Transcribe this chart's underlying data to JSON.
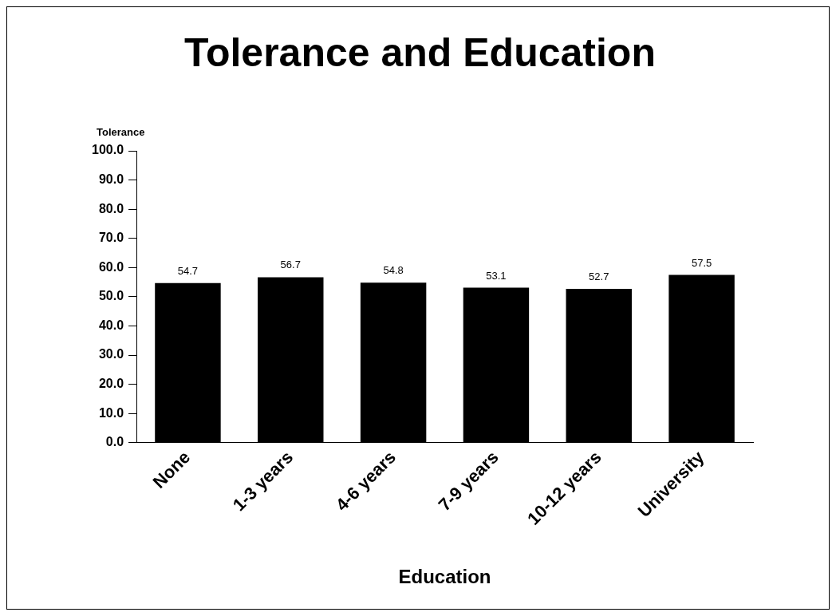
{
  "chart_data": {
    "type": "bar",
    "title": "Tolerance and Education",
    "xlabel": "Education",
    "ylabel": "Tolerance",
    "categories": [
      "None",
      "1-3 years",
      "4-6 years",
      "7-9 years",
      "10-12 years",
      "University"
    ],
    "values": [
      54.7,
      56.7,
      54.8,
      53.1,
      52.7,
      57.5
    ],
    "color": "#000000",
    "ylim": [
      0,
      100
    ],
    "yticks": [
      {
        "value": 0,
        "label": "0.0"
      },
      {
        "value": 10,
        "label": "10.0"
      },
      {
        "value": 20,
        "label": "20.0"
      },
      {
        "value": 30,
        "label": "30.0"
      },
      {
        "value": 40,
        "label": "40.0"
      },
      {
        "value": 50,
        "label": "50.0"
      },
      {
        "value": 60,
        "label": "60.0"
      },
      {
        "value": 70,
        "label": "70.0"
      },
      {
        "value": 80,
        "label": "80.0"
      },
      {
        "value": 90,
        "label": "90.0"
      },
      {
        "value": 100,
        "label": "100.0"
      }
    ],
    "data_labels": true,
    "grid": false,
    "legend": false
  }
}
